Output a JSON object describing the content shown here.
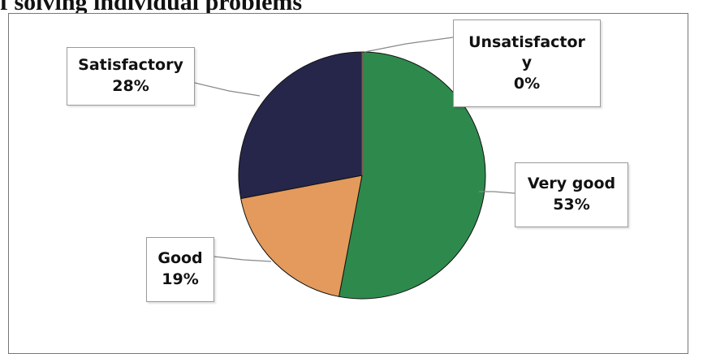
{
  "header": {
    "title_fragment": "f solving individual problems"
  },
  "chart_data": {
    "type": "pie",
    "slices": [
      {
        "label": "Very good",
        "value": 53,
        "pct_text": "53%",
        "color": "#2e8a4c"
      },
      {
        "label": "Good",
        "value": 19,
        "pct_text": "19%",
        "color": "#e39a5c"
      },
      {
        "label": "Satisfactory",
        "value": 28,
        "pct_text": "28%",
        "color": "#26264a"
      },
      {
        "label": "Unsatisfactor y",
        "value": 0,
        "pct_text": "0%",
        "color": "#c0304a"
      }
    ],
    "callouts": {
      "satisfactory": {
        "line1": "Satisfactory",
        "line2": "28%"
      },
      "unsatisfactory": {
        "line1": "Unsatisfactor",
        "line1b": "y",
        "line2": "0%"
      },
      "very_good": {
        "line1": "Very good",
        "line2": "53%"
      },
      "good": {
        "line1": "Good",
        "line2": "19%"
      }
    },
    "legend": "none"
  }
}
